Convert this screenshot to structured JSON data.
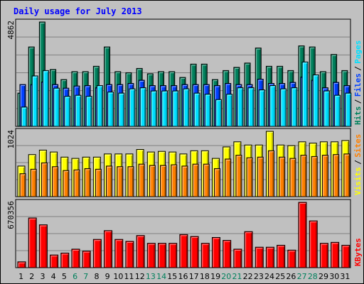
{
  "title": "Daily usage for July 2013",
  "colors": {
    "panel_bg": "#c0c0c0",
    "grid": "#808080",
    "title": "#0000ff",
    "hits": "#00805c",
    "files": "#0040ff",
    "pages": "#00e0ff",
    "visits": "#ffff00",
    "sites": "#ff8000",
    "kbytes": "#ff0000",
    "weekend_label": "#00805c",
    "day_label": "#000000"
  },
  "chart_data": [
    {
      "type": "bar",
      "panel": "top",
      "y_max_label": "4862",
      "ylim": [
        0,
        4862
      ],
      "categories": [
        "1",
        "2",
        "3",
        "4",
        "5",
        "6",
        "7",
        "8",
        "9",
        "10",
        "11",
        "12",
        "13",
        "14",
        "15",
        "16",
        "17",
        "18",
        "19",
        "20",
        "21",
        "22",
        "23",
        "24",
        "25",
        "26",
        "27",
        "28",
        "29",
        "30",
        "31"
      ],
      "weekend_days": [
        "6",
        "7",
        "13",
        "14",
        "20",
        "21",
        "27",
        "28"
      ],
      "legend": [
        {
          "text": "Hits",
          "color": "#00805c"
        },
        {
          "text": "Files",
          "color": "#0040ff"
        },
        {
          "text": "Pages",
          "color": "#00e0ff"
        }
      ],
      "series": [
        {
          "name": "Hits",
          "values": [
            1550,
            3700,
            4862,
            2650,
            2180,
            2550,
            2550,
            2800,
            3700,
            2550,
            2500,
            2700,
            2450,
            2550,
            2550,
            2280,
            2900,
            2900,
            2180,
            2600,
            2750,
            2950,
            3650,
            2800,
            2800,
            2600,
            3750,
            3700,
            2550,
            3350,
            2600
          ]
        },
        {
          "name": "Files",
          "values": [
            1950,
            1950,
            2070,
            1950,
            1780,
            1880,
            1900,
            1800,
            1950,
            1950,
            2000,
            2150,
            1900,
            1900,
            1900,
            1950,
            1950,
            1950,
            1900,
            2000,
            1950,
            1950,
            2200,
            2000,
            2000,
            2050,
            2300,
            2150,
            1800,
            2050,
            1900
          ]
        },
        {
          "name": "Pages",
          "values": [
            900,
            2350,
            2600,
            1780,
            1400,
            1450,
            1400,
            1900,
            1600,
            1550,
            1750,
            1800,
            1650,
            1650,
            1650,
            1750,
            1550,
            1500,
            1250,
            1500,
            1800,
            1800,
            1700,
            1900,
            1750,
            1800,
            3000,
            2400,
            1650,
            1450,
            1550
          ]
        }
      ]
    },
    {
      "type": "bar",
      "panel": "middle",
      "y_max_label": "1024",
      "ylim": [
        0,
        1024
      ],
      "categories": [
        "1",
        "2",
        "3",
        "4",
        "5",
        "6",
        "7",
        "8",
        "9",
        "10",
        "11",
        "12",
        "13",
        "14",
        "15",
        "16",
        "17",
        "18",
        "19",
        "20",
        "21",
        "22",
        "23",
        "24",
        "25",
        "26",
        "27",
        "28",
        "29",
        "30",
        "31"
      ],
      "legend": [
        {
          "text": "Visits",
          "color": "#ffff00"
        },
        {
          "text": "Sites",
          "color": "#ff8000"
        }
      ],
      "series": [
        {
          "name": "Visits",
          "values": [
            480,
            660,
            730,
            700,
            620,
            600,
            620,
            620,
            670,
            670,
            670,
            740,
            700,
            710,
            700,
            670,
            720,
            720,
            600,
            780,
            860,
            810,
            810,
            1024,
            810,
            800,
            860,
            840,
            860,
            860,
            880
          ]
        },
        {
          "name": "Sites",
          "values": [
            360,
            430,
            530,
            470,
            410,
            420,
            440,
            430,
            480,
            470,
            470,
            510,
            490,
            490,
            500,
            480,
            510,
            510,
            440,
            590,
            650,
            610,
            620,
            720,
            620,
            600,
            650,
            630,
            650,
            660,
            670
          ]
        }
      ]
    },
    {
      "type": "bar",
      "panel": "bottom",
      "y_max_label": "670356",
      "ylim": [
        0,
        670356
      ],
      "categories": [
        "1",
        "2",
        "3",
        "4",
        "5",
        "6",
        "7",
        "8",
        "9",
        "10",
        "11",
        "12",
        "13",
        "14",
        "15",
        "16",
        "17",
        "18",
        "19",
        "20",
        "21",
        "22",
        "23",
        "24",
        "25",
        "26",
        "27",
        "28",
        "29",
        "30",
        "31"
      ],
      "legend": [
        {
          "text": "KBytes",
          "color": "#ff0000"
        }
      ],
      "series": [
        {
          "name": "KBytes",
          "values": [
            60000,
            510000,
            440000,
            130000,
            150000,
            190000,
            170000,
            290000,
            380000,
            290000,
            270000,
            330000,
            250000,
            250000,
            250000,
            340000,
            320000,
            250000,
            310000,
            280000,
            190000,
            370000,
            210000,
            210000,
            230000,
            180000,
            670356,
            480000,
            250000,
            260000,
            230000
          ]
        }
      ]
    }
  ]
}
